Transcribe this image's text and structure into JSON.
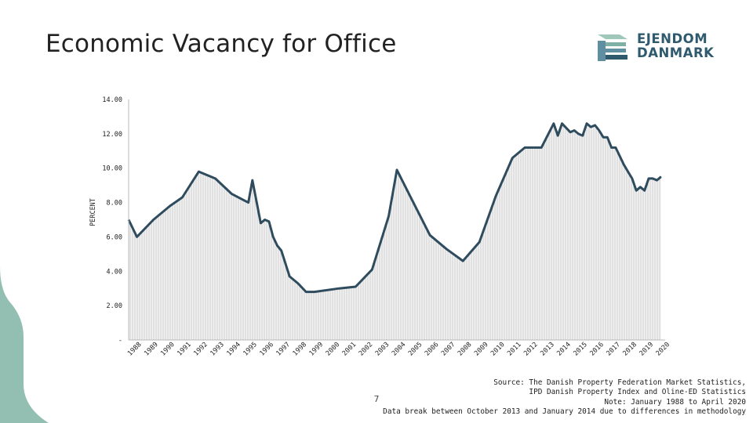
{
  "slide": {
    "title": "Economic Vacancy for Office",
    "page_number": "7",
    "logo": {
      "line1": "EJENDOM",
      "line2": "DANMARK"
    },
    "source_lines": [
      "Source: The Danish Property Federation Market Statistics,",
      "IPD Danish Property Index and Oline-ED Statistics",
      "Note: January 1988 to April 2020",
      "Data break between October 2013 and January 2014 due to differences in methodology"
    ]
  },
  "colors": {
    "accent_band": "#93bfb2",
    "line": "#2f4c5e",
    "fill_hatch": "#cfcfcf",
    "plot_bg": "#f3f3f3",
    "logo": "#2f5a6e"
  },
  "chart_data": {
    "type": "line",
    "title": "",
    "xlabel": "",
    "ylabel": "PERCENT",
    "ylim": [
      0,
      14
    ],
    "y_ticks": [
      0,
      2,
      4,
      6,
      8,
      10,
      12,
      14
    ],
    "y_tick_labels": [
      "-",
      "2.00",
      "4.00",
      "6.00",
      "8.00",
      "10.00",
      "12.00",
      "14.00"
    ],
    "categories": [
      "1988",
      "1989",
      "1990",
      "1991",
      "1992",
      "1993",
      "1994",
      "1995",
      "1996",
      "1997",
      "1998",
      "1999",
      "2000",
      "2001",
      "2002",
      "2003",
      "2004",
      "2005",
      "2006",
      "2007",
      "2008",
      "2009",
      "2010",
      "2011",
      "2012",
      "2013",
      "2014",
      "2015",
      "2016",
      "2017",
      "2018",
      "2019",
      "2020"
    ],
    "grid": false,
    "fill_under_line": true,
    "series": [
      {
        "x": [
          1988.0,
          1988.5,
          1989.5,
          1990.5,
          1991.25,
          1992.25,
          1993.25,
          1994.25,
          1995.25,
          1995.5,
          1996.0,
          1996.25,
          1996.5,
          1996.75,
          1997.0,
          1997.25,
          1997.75,
          1998.25,
          1998.75,
          1999.25,
          2000.75,
          2001.75,
          2002.75,
          2003.75,
          2004.25,
          2005.25,
          2006.25,
          2007.25,
          2008.25,
          2009.25,
          2010.25,
          2011.25,
          2012.0,
          2013.0,
          2013.75,
          2014.0,
          2014.25,
          2014.75,
          2015.0,
          2015.25,
          2015.5,
          2015.75,
          2016.0,
          2016.25,
          2016.5,
          2016.75,
          2017.0,
          2017.25,
          2017.5,
          2018.0,
          2018.25,
          2018.5,
          2018.75,
          2019.0,
          2019.25,
          2019.5,
          2019.75,
          2020.0,
          2020.25
        ],
        "values": [
          7.0,
          6.0,
          7.0,
          7.8,
          8.3,
          9.8,
          9.4,
          8.5,
          8.0,
          9.3,
          6.8,
          7.0,
          6.9,
          6.0,
          5.5,
          5.2,
          3.7,
          3.3,
          2.8,
          2.8,
          3.0,
          3.1,
          4.1,
          7.2,
          9.9,
          8.0,
          6.1,
          5.3,
          4.6,
          5.7,
          8.4,
          10.6,
          11.2,
          11.2,
          12.6,
          11.9,
          12.6,
          12.1,
          12.2,
          12.0,
          11.9,
          12.6,
          12.4,
          12.5,
          12.2,
          11.8,
          11.8,
          11.2,
          11.2,
          10.2,
          9.8,
          9.4,
          8.7,
          8.9,
          8.7,
          9.4,
          9.4,
          9.3,
          9.5
        ]
      }
    ]
  }
}
